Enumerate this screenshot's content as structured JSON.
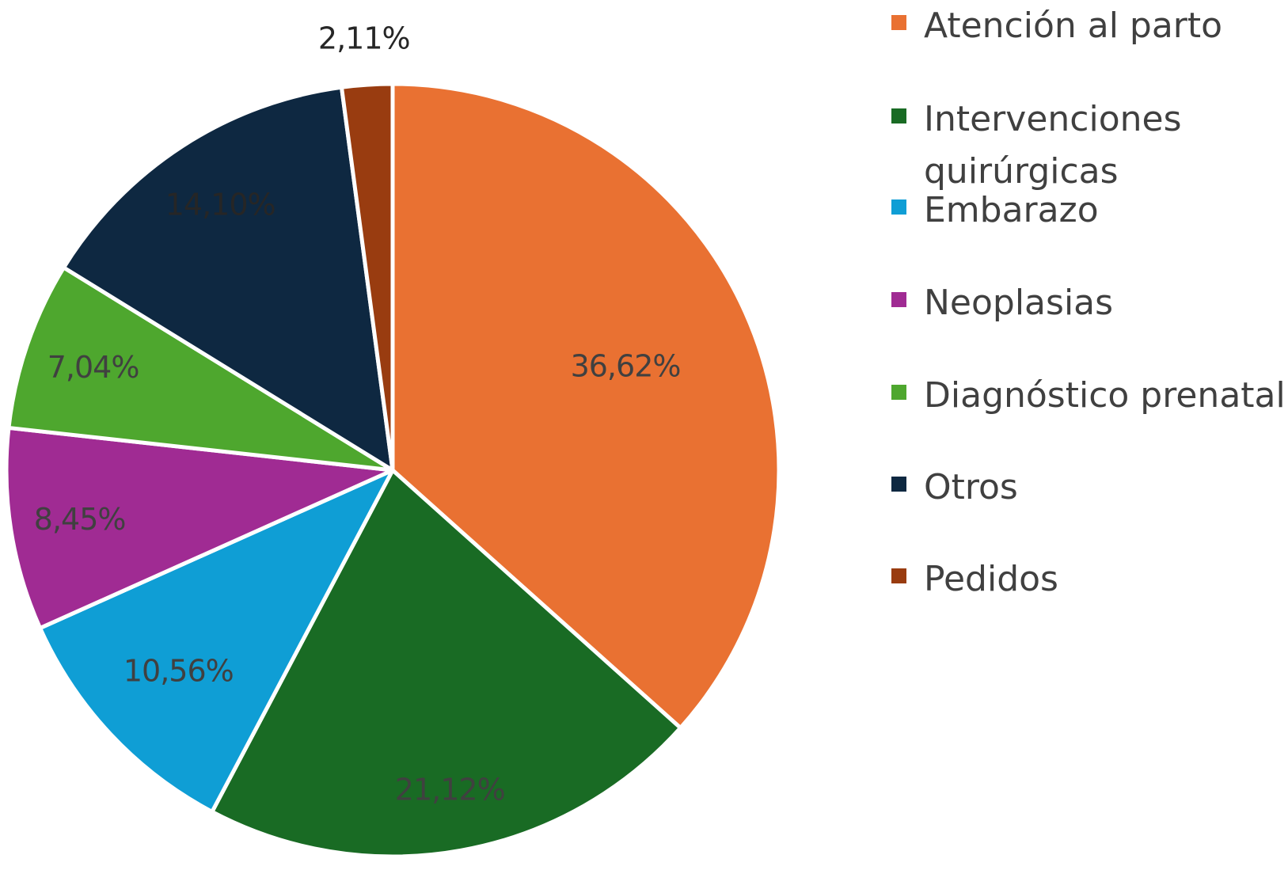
{
  "chart_data": {
    "type": "pie",
    "title": "",
    "start_angle_deg": 0,
    "direction": "clockwise",
    "legend_position": "right",
    "slices": [
      {
        "name": "Atención al parto",
        "value": 36.62,
        "label": "36,62%",
        "color": "#E97132",
        "label_color": "#404040"
      },
      {
        "name": "Intervenciones quirúrgicas",
        "value": 21.12,
        "label": "21,12%",
        "color": "#196B24",
        "label_color": "#404040"
      },
      {
        "name": "Embarazo",
        "value": 10.56,
        "label": "10,56%",
        "color": "#0F9ED5",
        "label_color": "#404040"
      },
      {
        "name": "Neoplasias",
        "value": 8.45,
        "label": "8,45%",
        "color": "#A02B93",
        "label_color": "#404040"
      },
      {
        "name": "Diagnóstico prenatal",
        "value": 7.04,
        "label": "7,04%",
        "color": "#4EA72E",
        "label_color": "#404040"
      },
      {
        "name": "Otros",
        "value": 14.1,
        "label": "14,10%",
        "color": "#0E2841",
        "label_color": "#262626"
      },
      {
        "name": "Pedidos",
        "value": 2.11,
        "label": "2,11%",
        "color": "#993C10",
        "label_color": "#262626"
      }
    ]
  },
  "legend": {
    "items": [
      {
        "label": "Atención al parto",
        "color": "#E97132"
      },
      {
        "label": "Intervenciones quirúrgicas",
        "color": "#196B24"
      },
      {
        "label": "Embarazo",
        "color": "#0F9ED5"
      },
      {
        "label": "Neoplasias",
        "color": "#A02B93"
      },
      {
        "label": "Diagnóstico prenatal",
        "color": "#4EA72E"
      },
      {
        "label": "Otros",
        "color": "#0E2841"
      },
      {
        "label": "Pedidos",
        "color": "#993C10"
      }
    ]
  }
}
